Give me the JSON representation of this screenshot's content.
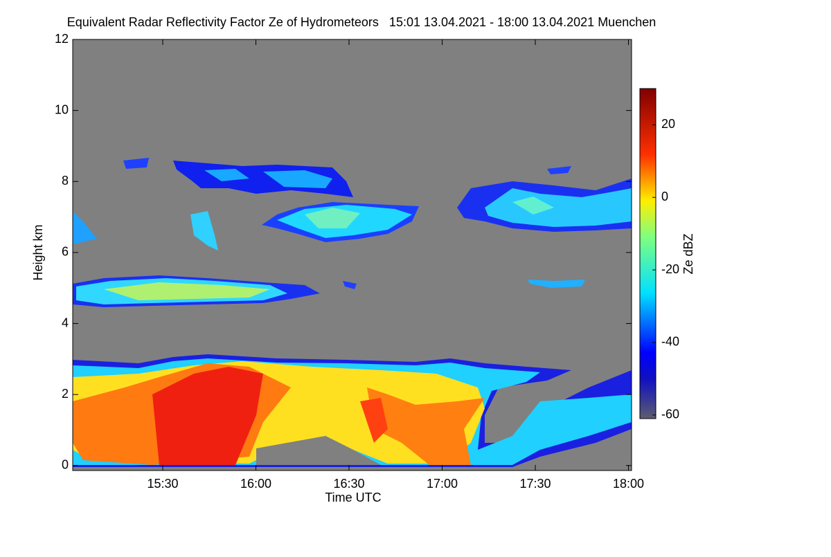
{
  "chart_data": {
    "type": "heatmap",
    "title": "Equivalent Radar Reflectivity Factor Ze of Hydrometeors   15:01 13.04.2021 - 18:00 13.04.2021 Muenchen",
    "x_label": "Time UTC",
    "y_label": "Height km",
    "colorbar_label": "Ze dBZ",
    "xlim": [
      901,
      1081
    ],
    "xticks": [
      {
        "value": 930,
        "label": "15:30"
      },
      {
        "value": 960,
        "label": "16:00"
      },
      {
        "value": 990,
        "label": "16:30"
      },
      {
        "value": 1020,
        "label": "17:00"
      },
      {
        "value": 1050,
        "label": "17:30"
      },
      {
        "value": 1080,
        "label": "18:00"
      }
    ],
    "ylim": [
      -0.14,
      12
    ],
    "yticks": [
      0,
      2,
      4,
      6,
      8,
      10,
      12
    ],
    "clim": [
      -61,
      30
    ],
    "cticks": [
      -60,
      -40,
      -20,
      0,
      20
    ]
  }
}
